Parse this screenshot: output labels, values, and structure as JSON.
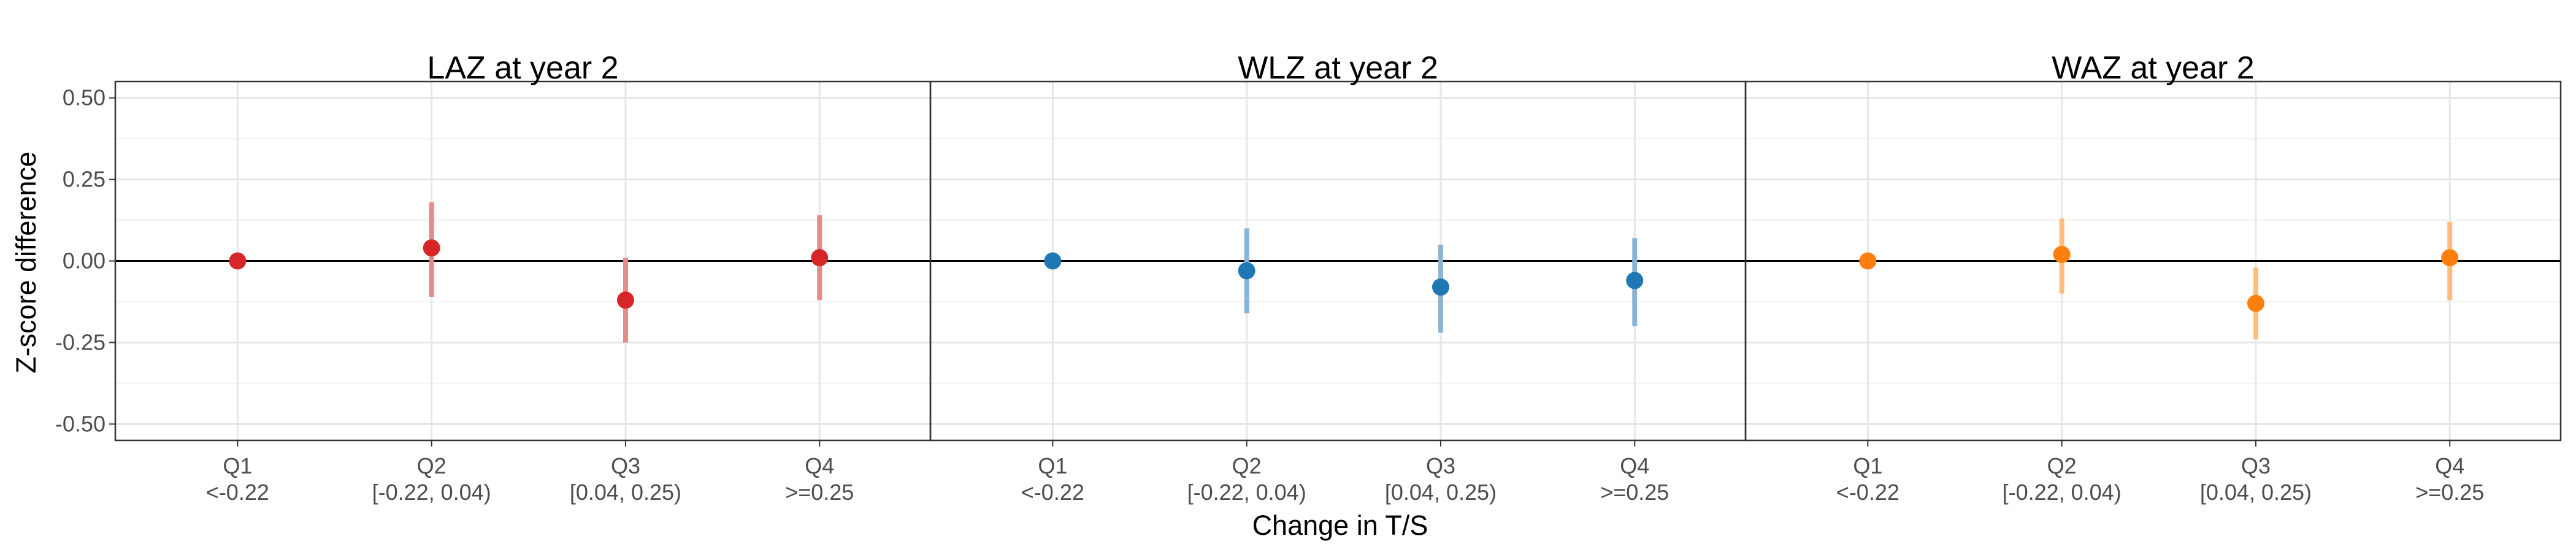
{
  "chart_data": {
    "type": "scatter",
    "xlabel": "Change in T/S",
    "ylabel": "Z-score difference",
    "ylim": [
      -0.55,
      0.55
    ],
    "y_ticks": [
      "0.50",
      "0.25",
      "0.00",
      "-0.25",
      "-0.50"
    ],
    "y_tick_values": [
      0.5,
      0.25,
      0,
      -0.25,
      -0.5
    ],
    "categories": [
      {
        "q": "Q1",
        "range": "<-0.22"
      },
      {
        "q": "Q2",
        "range": "[-0.22, 0.04)"
      },
      {
        "q": "Q3",
        "range": "[0.04, 0.25)"
      },
      {
        "q": "Q4",
        "range": ">=0.25"
      }
    ],
    "grid": true,
    "reference_line": 0,
    "panels": [
      {
        "title": "LAZ at year 2",
        "color": "#d62728",
        "ci_color": "#e8898a",
        "points": [
          {
            "category": "Q1",
            "estimate": 0.0,
            "lower": 0.0,
            "upper": 0.0
          },
          {
            "category": "Q2",
            "estimate": 0.04,
            "lower": -0.11,
            "upper": 0.18
          },
          {
            "category": "Q3",
            "estimate": -0.12,
            "lower": -0.25,
            "upper": 0.01
          },
          {
            "category": "Q4",
            "estimate": 0.01,
            "lower": -0.12,
            "upper": 0.14
          }
        ]
      },
      {
        "title": "WLZ at year 2",
        "color": "#1f77b4",
        "ci_color": "#88b4d6",
        "points": [
          {
            "category": "Q1",
            "estimate": 0.0,
            "lower": 0.0,
            "upper": 0.0
          },
          {
            "category": "Q2",
            "estimate": -0.03,
            "lower": -0.16,
            "upper": 0.1
          },
          {
            "category": "Q3",
            "estimate": -0.08,
            "lower": -0.22,
            "upper": 0.05
          },
          {
            "category": "Q4",
            "estimate": -0.06,
            "lower": -0.2,
            "upper": 0.07
          }
        ]
      },
      {
        "title": "WAZ at year 2",
        "color": "#ff7f0e",
        "ci_color": "#ffbd7a",
        "points": [
          {
            "category": "Q1",
            "estimate": 0.0,
            "lower": 0.0,
            "upper": 0.0
          },
          {
            "category": "Q2",
            "estimate": 0.02,
            "lower": -0.1,
            "upper": 0.13
          },
          {
            "category": "Q3",
            "estimate": -0.13,
            "lower": -0.24,
            "upper": -0.02
          },
          {
            "category": "Q4",
            "estimate": 0.01,
            "lower": -0.12,
            "upper": 0.12
          }
        ]
      }
    ]
  }
}
